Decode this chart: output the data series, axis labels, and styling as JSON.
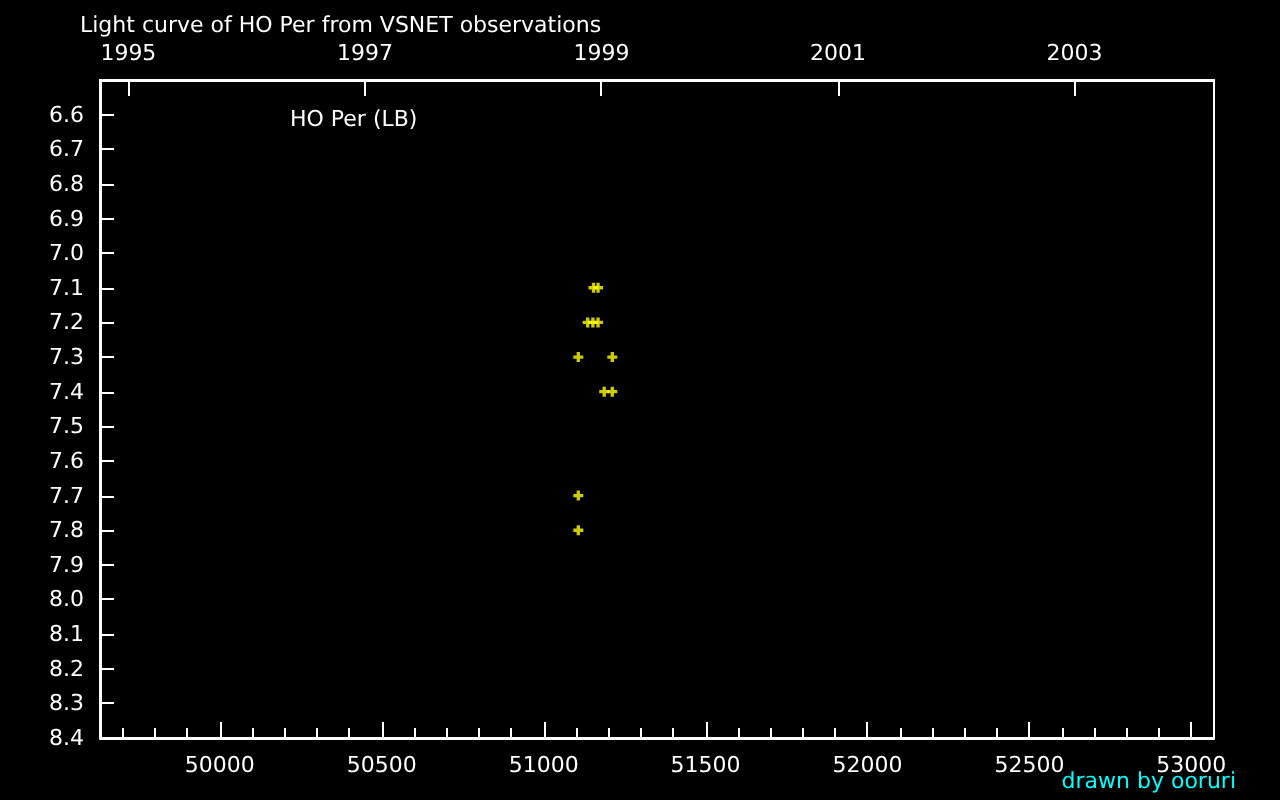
{
  "chart_data": {
    "type": "scatter",
    "title": "Light curve of HO Per from VSNET observations",
    "annotations": [
      "HO Per (LB)",
      "drawn by ooruri"
    ],
    "series": [
      {
        "color": "#ffff00",
        "x": [
          51154,
          51168,
          51136,
          51152,
          51168,
          51107,
          51212,
          51187,
          51212,
          51107,
          51107
        ],
        "values": [
          7.1,
          7.1,
          7.2,
          7.2,
          7.2,
          7.3,
          7.3,
          7.4,
          7.4,
          7.7,
          7.8
        ]
      }
    ],
    "xlim": [
      49630,
      53070
    ],
    "xticks": [
      50000,
      50500,
      51000,
      51500,
      52000,
      52500,
      53000
    ],
    "x2lim": [
      1994.76,
      2004.18
    ],
    "x2ticks": [
      1995,
      1997,
      1999,
      2001,
      2003
    ],
    "ylim": [
      8.4,
      6.5
    ],
    "yticks": [
      6.6,
      6.7,
      6.8,
      6.9,
      {
        "value": 7.0,
        "label": "7.0"
      },
      7.1,
      7.2,
      7.3,
      7.4,
      7.5,
      7.6,
      7.7,
      7.8,
      7.9,
      {
        "value": 8.0,
        "label": "8.0"
      },
      8.1,
      8.2,
      8.3,
      8.4
    ],
    "grid": false,
    "marker": "cross"
  }
}
